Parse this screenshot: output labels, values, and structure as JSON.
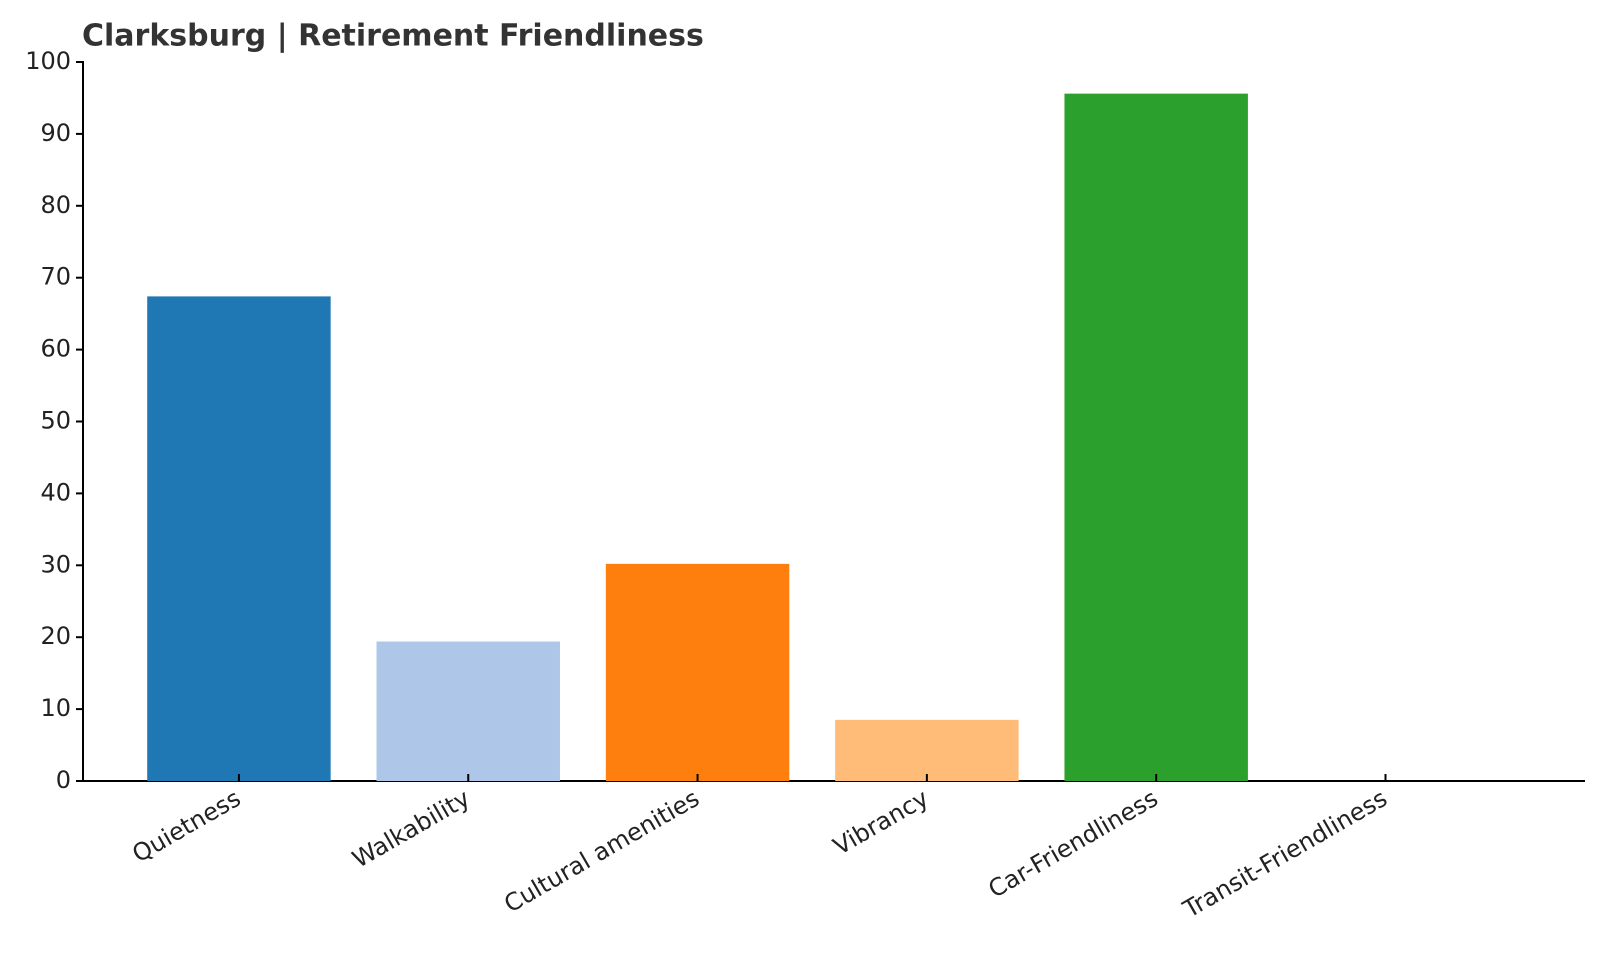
{
  "chart_data": {
    "type": "bar",
    "title": "Clarksburg | Retirement Friendliness",
    "categories": [
      "Quietness",
      "Walkability",
      "Cultural amenities",
      "Vibrancy",
      "Car-Friendliness",
      "Transit-Friendliness"
    ],
    "values": [
      67.4,
      19.4,
      30.2,
      8.5,
      95.6,
      0
    ],
    "colors": [
      "#1f77b4",
      "#aec7e8",
      "#ff7f0e",
      "#ffbb78",
      "#2ca02c",
      "#98df8a"
    ],
    "ylim": [
      0,
      100
    ],
    "yticks": [
      0,
      10,
      20,
      30,
      40,
      50,
      60,
      70,
      80,
      90,
      100
    ],
    "grid": false
  }
}
